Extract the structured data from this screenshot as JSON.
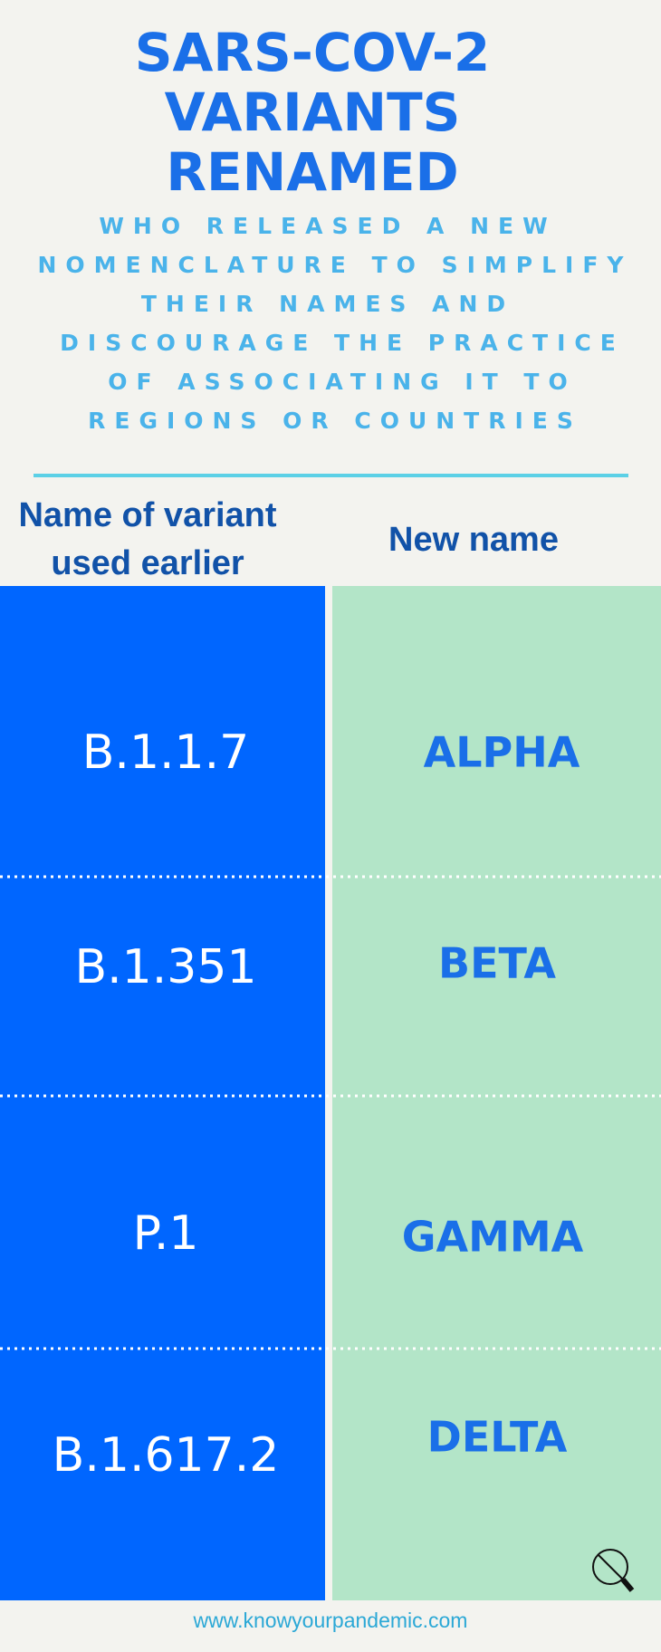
{
  "header": {
    "title": [
      "SARS-COV-2",
      "VARIANTS",
      "RENAMED"
    ],
    "subtitle": [
      "WHO RELEASED A NEW",
      "NOMENCLATURE TO SIMPLIFY",
      "THEIR NAMES AND",
      "DISCOURAGE THE PRACTICE",
      "OF ASSOCIATING IT TO",
      "REGIONS OR COUNTRIES"
    ]
  },
  "table": {
    "headers": [
      [
        "Name of variant",
        "used earlier"
      ],
      "New name"
    ],
    "rows": [
      [
        "B.1.1.7",
        "ALPHA"
      ],
      [
        "B.1.351",
        "BETA"
      ],
      [
        "P.1",
        "GAMMA"
      ],
      [
        "B.1.617.2",
        "DELTA"
      ]
    ]
  },
  "footer": "www.knowyourpandemic.com"
}
